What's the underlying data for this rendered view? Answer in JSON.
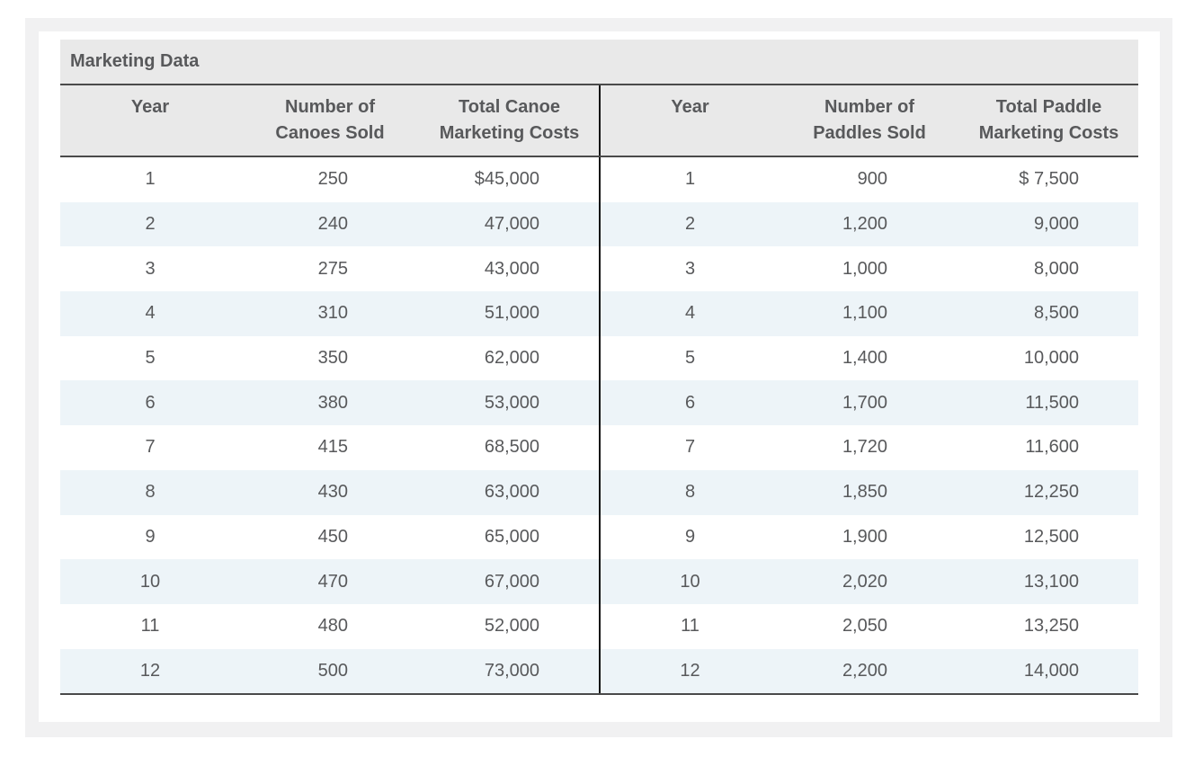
{
  "title_bar": {
    "title": "Marketing Data"
  },
  "table": {
    "header_lines": [
      [
        "Year",
        ""
      ],
      [
        "Number of",
        "Canoes Sold"
      ],
      [
        "Total Canoe",
        "Marketing Costs"
      ],
      [
        "Year",
        ""
      ],
      [
        "Number of",
        "Paddles Sold"
      ],
      [
        "Total Paddle",
        "Marketing Costs"
      ]
    ],
    "rows": [
      {
        "canoe_year": "1",
        "canoes_sold": "250",
        "canoe_cost": "$45,000",
        "paddle_year": "1",
        "paddles_sold": "900",
        "paddle_cost": "$ 7,500"
      },
      {
        "canoe_year": "2",
        "canoes_sold": "240",
        "canoe_cost": "47,000",
        "paddle_year": "2",
        "paddles_sold": "1,200",
        "paddle_cost": "9,000"
      },
      {
        "canoe_year": "3",
        "canoes_sold": "275",
        "canoe_cost": "43,000",
        "paddle_year": "3",
        "paddles_sold": "1,000",
        "paddle_cost": "8,000"
      },
      {
        "canoe_year": "4",
        "canoes_sold": "310",
        "canoe_cost": "51,000",
        "paddle_year": "4",
        "paddles_sold": "1,100",
        "paddle_cost": "8,500"
      },
      {
        "canoe_year": "5",
        "canoes_sold": "350",
        "canoe_cost": "62,000",
        "paddle_year": "5",
        "paddles_sold": "1,400",
        "paddle_cost": "10,000"
      },
      {
        "canoe_year": "6",
        "canoes_sold": "380",
        "canoe_cost": "53,000",
        "paddle_year": "6",
        "paddles_sold": "1,700",
        "paddle_cost": "11,500"
      },
      {
        "canoe_year": "7",
        "canoes_sold": "415",
        "canoe_cost": "68,500",
        "paddle_year": "7",
        "paddles_sold": "1,720",
        "paddle_cost": "11,600"
      },
      {
        "canoe_year": "8",
        "canoes_sold": "430",
        "canoe_cost": "63,000",
        "paddle_year": "8",
        "paddles_sold": "1,850",
        "paddle_cost": "12,250"
      },
      {
        "canoe_year": "9",
        "canoes_sold": "450",
        "canoe_cost": "65,000",
        "paddle_year": "9",
        "paddles_sold": "1,900",
        "paddle_cost": "12,500"
      },
      {
        "canoe_year": "10",
        "canoes_sold": "470",
        "canoe_cost": "67,000",
        "paddle_year": "10",
        "paddles_sold": "2,020",
        "paddle_cost": "13,100"
      },
      {
        "canoe_year": "11",
        "canoes_sold": "480",
        "canoe_cost": "52,000",
        "paddle_year": "11",
        "paddles_sold": "2,050",
        "paddle_cost": "13,250"
      },
      {
        "canoe_year": "12",
        "canoes_sold": "500",
        "canoe_cost": "73,000",
        "paddle_year": "12",
        "paddles_sold": "2,200",
        "paddle_cost": "14,000"
      }
    ]
  },
  "colors": {
    "header_bg": "#e9e9e9",
    "stripe_bg": "#edf4f8",
    "panel_bg": "#f1f1f2",
    "text": "#58595b",
    "border_dark": "#4a4a4a",
    "divider": "#131313"
  },
  "chart_data": {
    "type": "table",
    "title": "Marketing Data",
    "columns": [
      "Year",
      "Number of Canoes Sold",
      "Total Canoe Marketing Costs",
      "Year",
      "Number of Paddles Sold",
      "Total Paddle Marketing Costs"
    ],
    "canoes": {
      "years": [
        1,
        2,
        3,
        4,
        5,
        6,
        7,
        8,
        9,
        10,
        11,
        12
      ],
      "canoes_sold": [
        250,
        240,
        275,
        310,
        350,
        380,
        415,
        430,
        450,
        470,
        480,
        500
      ],
      "marketing_costs_usd": [
        45000,
        47000,
        43000,
        51000,
        62000,
        53000,
        68500,
        63000,
        65000,
        67000,
        52000,
        73000
      ]
    },
    "paddles": {
      "years": [
        1,
        2,
        3,
        4,
        5,
        6,
        7,
        8,
        9,
        10,
        11,
        12
      ],
      "paddles_sold": [
        900,
        1200,
        1000,
        1100,
        1400,
        1700,
        1720,
        1850,
        1900,
        2020,
        2050,
        2200
      ],
      "marketing_costs_usd": [
        7500,
        9000,
        8000,
        8500,
        10000,
        11500,
        11600,
        12250,
        12500,
        13100,
        13250,
        14000
      ]
    }
  }
}
